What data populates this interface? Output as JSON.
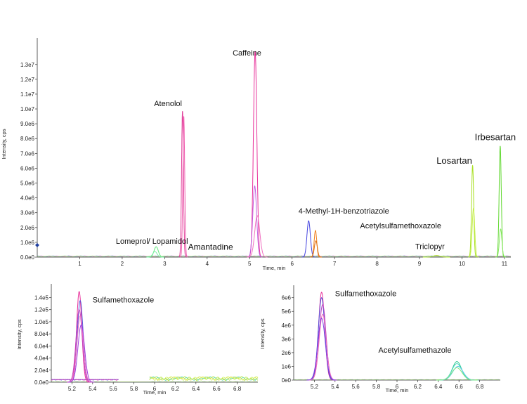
{
  "chart_data": [
    {
      "type": "line",
      "xlabel": "Time, min",
      "ylabel": "Intensity, cps",
      "xlim": [
        0,
        11.15
      ],
      "ylim": [
        0,
        14600000
      ],
      "x_ticks": [
        1,
        2,
        3,
        4,
        5,
        6,
        7,
        8,
        9,
        10,
        11
      ],
      "y_ticks": [
        {
          "value": 0,
          "label": "0.0e0"
        },
        {
          "value": 1000000,
          "label": "1.0e6"
        },
        {
          "value": 2000000,
          "label": "2.0e6"
        },
        {
          "value": 3000000,
          "label": "3.0e6"
        },
        {
          "value": 4000000,
          "label": "4.0e6"
        },
        {
          "value": 5000000,
          "label": "5.0e6"
        },
        {
          "value": 6000000,
          "label": "6.0e6"
        },
        {
          "value": 7000000,
          "label": "7.0e6"
        },
        {
          "value": 8000000,
          "label": "8.0e6"
        },
        {
          "value": 9000000,
          "label": "9.0e6"
        },
        {
          "value": 10000000,
          "label": "1.0e7"
        },
        {
          "value": 11000000,
          "label": "1.1e7"
        },
        {
          "value": 12000000,
          "label": "1.2e7"
        },
        {
          "value": 13000000,
          "label": "1.3e7"
        }
      ],
      "peaks": [
        {
          "rt": 2.8,
          "height": 700000,
          "color": "#5ee87a",
          "width": 0.05
        },
        {
          "rt": 2.77,
          "height": 380000,
          "color": "#7ff0a8",
          "width": 0.05
        },
        {
          "rt": 3.42,
          "height": 9850000,
          "color": "#e0409a",
          "width": 0.022
        },
        {
          "rt": 3.45,
          "height": 9500000,
          "color": "#f05fb0",
          "width": 0.022
        },
        {
          "rt": 5.13,
          "height": 13900000,
          "color": "#e8309a",
          "width": 0.04
        },
        {
          "rt": 5.12,
          "height": 4800000,
          "color": "#c060e0",
          "width": 0.045
        },
        {
          "rt": 5.18,
          "height": 2800000,
          "color": "#f070c0",
          "width": 0.06
        },
        {
          "rt": 6.39,
          "height": 2450000,
          "color": "#4545e0",
          "width": 0.04
        },
        {
          "rt": 6.55,
          "height": 1800000,
          "color": "#f08020",
          "width": 0.03
        },
        {
          "rt": 6.56,
          "height": 1100000,
          "color": "#e07010",
          "width": 0.035
        },
        {
          "rt": 9.4,
          "height": 120000,
          "color": "#b8e840",
          "width": 0.08
        },
        {
          "rt": 10.25,
          "height": 6200000,
          "color": "#a8e020",
          "width": 0.025
        },
        {
          "rt": 10.27,
          "height": 3300000,
          "color": "#c8f050",
          "width": 0.03
        },
        {
          "rt": 10.9,
          "height": 7500000,
          "color": "#60d830",
          "width": 0.025
        },
        {
          "rt": 10.91,
          "height": 1900000,
          "color": "#88e860",
          "width": 0.03
        }
      ],
      "annotations": [
        {
          "text": "Caffeine",
          "rt": 4.6,
          "y": 13600000
        },
        {
          "text": "Atenolol",
          "rt": 2.75,
          "y": 10200000
        },
        {
          "text": "Irbesartan",
          "rt": 10.3,
          "y": 7900000
        },
        {
          "text": "Losartan",
          "rt": 9.4,
          "y": 6300000
        },
        {
          "text": "4-Methyl-1H-benzotriazole",
          "rt": 6.15,
          "y": 2950000
        },
        {
          "text": "Acetylsulfamethoxazole",
          "rt": 7.6,
          "y": 1950000
        },
        {
          "text": "Lomeprol/ Lopamidol",
          "rt": 1.85,
          "y": 900000
        },
        {
          "text": "Amantadine",
          "rt": 3.55,
          "y": 500000
        },
        {
          "text": "Triclopyr",
          "rt": 8.9,
          "y": 550000
        }
      ]
    },
    {
      "type": "line",
      "xlabel": "Time, min",
      "ylabel": "Intensity, cps",
      "xlim": [
        5.0,
        7.0
      ],
      "ylim": [
        0,
        158000
      ],
      "x_ticks": [
        5.2,
        5.4,
        5.6,
        5.8,
        6.0,
        6.2,
        6.4,
        6.6,
        6.8
      ],
      "y_ticks": [
        {
          "value": 0,
          "label": "0.0e0"
        },
        {
          "value": 20000,
          "label": "2.0e4"
        },
        {
          "value": 40000,
          "label": "4.0e4"
        },
        {
          "value": 60000,
          "label": "6.0e4"
        },
        {
          "value": 80000,
          "label": "8.0e4"
        },
        {
          "value": 100000,
          "label": "1.0e5"
        },
        {
          "value": 120000,
          "label": "1.2e5"
        },
        {
          "value": 140000,
          "label": "1.4e5"
        }
      ],
      "peaks": [
        {
          "rt": 5.27,
          "height": 150000,
          "color": "#e8309a",
          "width": 0.025
        },
        {
          "rt": 5.28,
          "height": 135000,
          "color": "#5050d8",
          "width": 0.028
        },
        {
          "rt": 5.27,
          "height": 120000,
          "color": "#c040c0",
          "width": 0.03
        },
        {
          "rt": 5.28,
          "height": 110000,
          "color": "#f070c0",
          "width": 0.03
        },
        {
          "rt": 5.29,
          "height": 95000,
          "color": "#a040e0",
          "width": 0.032
        }
      ],
      "annotations": [
        {
          "text": "Sulfamethoxazole",
          "rt": 5.4,
          "y": 132000
        }
      ]
    },
    {
      "type": "line",
      "xlabel": "Time, min",
      "ylabel": "Intensity, cps",
      "xlim": [
        5.0,
        7.0
      ],
      "ylim": [
        0,
        6700000
      ],
      "x_ticks": [
        5.2,
        5.4,
        5.6,
        5.8,
        6.0,
        6.2,
        6.4,
        6.6,
        6.8
      ],
      "y_ticks": [
        {
          "value": 0,
          "label": "0e0"
        },
        {
          "value": 1000000,
          "label": "1e6"
        },
        {
          "value": 2000000,
          "label": "2e6"
        },
        {
          "value": 3000000,
          "label": "3e6"
        },
        {
          "value": 4000000,
          "label": "4e6"
        },
        {
          "value": 5000000,
          "label": "5e6"
        },
        {
          "value": 6000000,
          "label": "6e6"
        }
      ],
      "peaks": [
        {
          "rt": 5.27,
          "height": 6400000,
          "color": "#e8309a",
          "width": 0.03
        },
        {
          "rt": 5.27,
          "height": 6000000,
          "color": "#5050d8",
          "width": 0.032
        },
        {
          "rt": 5.28,
          "height": 5500000,
          "color": "#c040c0",
          "width": 0.033
        },
        {
          "rt": 5.28,
          "height": 4800000,
          "color": "#f070c0",
          "width": 0.034
        },
        {
          "rt": 5.27,
          "height": 4500000,
          "color": "#8040e0",
          "width": 0.036
        },
        {
          "rt": 6.58,
          "height": 1350000,
          "color": "#30c890",
          "width": 0.045
        },
        {
          "rt": 6.58,
          "height": 1200000,
          "color": "#50d8c0",
          "width": 0.048
        },
        {
          "rt": 6.59,
          "height": 1000000,
          "color": "#60c8e8",
          "width": 0.05
        },
        {
          "rt": 6.58,
          "height": 900000,
          "color": "#80e880",
          "width": 0.05
        }
      ],
      "annotations": [
        {
          "text": "Sulfamethoxazole",
          "rt": 5.4,
          "y": 6100000
        },
        {
          "text": "Acetylsulfamethazole",
          "rt": 5.82,
          "y": 2000000
        }
      ]
    }
  ]
}
